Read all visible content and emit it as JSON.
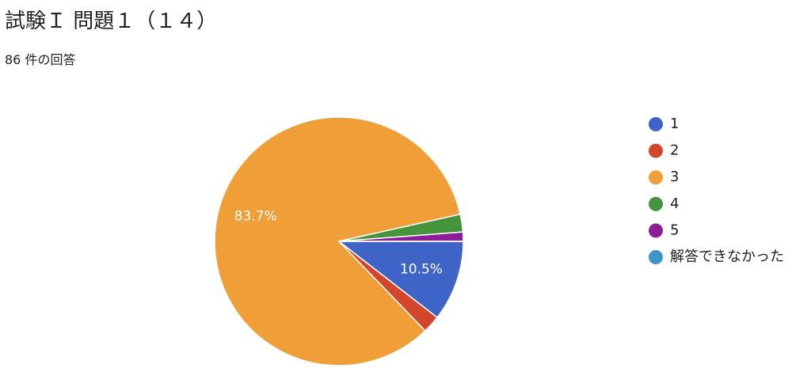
{
  "chart_data": {
    "type": "pie",
    "title": "試験Ｉ 問題１（１４）",
    "subtitle": "86 件の回答",
    "categories": [
      "1",
      "2",
      "3",
      "4",
      "5",
      "解答できなかった"
    ],
    "values": [
      10.5,
      2.3,
      83.7,
      2.3,
      1.2,
      0
    ],
    "value_labels": [
      "10.5%",
      null,
      "83.7%",
      null,
      null,
      null
    ],
    "colors": [
      "#3f64c8",
      "#d2472b",
      "#f09e38",
      "#44943b",
      "#8c1f97",
      "#3c95c9"
    ],
    "legend": "right"
  }
}
